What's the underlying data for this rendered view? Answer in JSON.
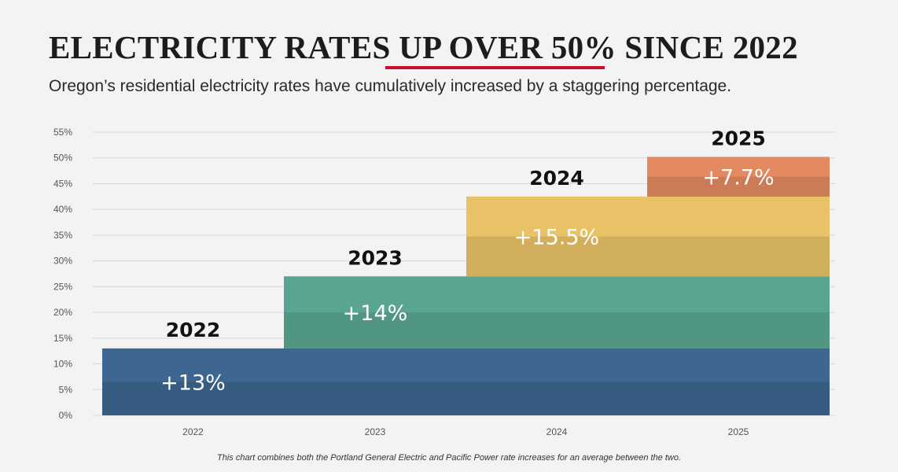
{
  "title": "ELECTRICITY RATES UP OVER 50% SINCE 2022",
  "subtitle": "Oregon’s residential electricity rates have cumulatively increased by a staggering percentage.",
  "footnote": "This chart combines both the Portland General Electric and Pacific Power rate increases for an average between the two.",
  "colors": {
    "accent_underline": "#c8102e",
    "grid": "#d6d6d6",
    "bar_2022": "#3d6690",
    "bar_2023": "#5aa592",
    "bar_2024": "#e9c267",
    "bar_2025": "#e2895f"
  },
  "chart_data": {
    "type": "bar",
    "subtype": "stacked-step",
    "title": "ELECTRICITY RATES UP OVER 50% SINCE 2022",
    "xlabel": "",
    "ylabel": "",
    "ylim": [
      0,
      55
    ],
    "yticks": [
      "0%",
      "5%",
      "10%",
      "15%",
      "20%",
      "25%",
      "30%",
      "35%",
      "40%",
      "45%",
      "50%",
      "55%"
    ],
    "grid": true,
    "categories": [
      "2022",
      "2023",
      "2024",
      "2025"
    ],
    "series": [
      {
        "name": "2022",
        "year_label": "2022",
        "increase_label": "+13%",
        "base": 0,
        "top": 13,
        "color": "#3d6690"
      },
      {
        "name": "2023",
        "year_label": "2023",
        "increase_label": "+14%",
        "base": 13,
        "top": 27,
        "color": "#5aa592"
      },
      {
        "name": "2024",
        "year_label": "2024",
        "increase_label": "+15.5%",
        "base": 27,
        "top": 42.5,
        "color": "#e9c267"
      },
      {
        "name": "2025",
        "year_label": "2025",
        "increase_label": "+7.7%",
        "base": 42.5,
        "top": 50.2,
        "color": "#e2895f"
      }
    ]
  }
}
